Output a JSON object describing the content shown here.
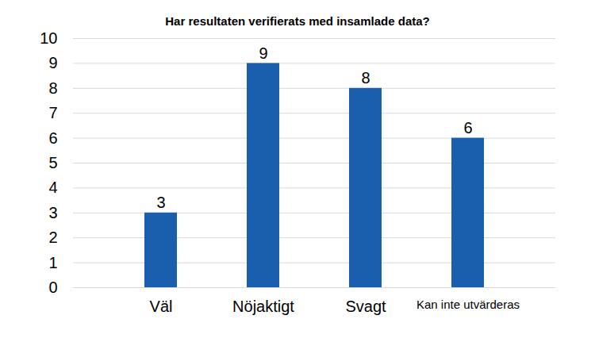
{
  "chart_data": {
    "type": "bar",
    "title": "Har resultaten verifierats med insamlade data?",
    "categories": [
      "Väl",
      "Nöjaktigt",
      "Svagt",
      "Kan inte utvärderas"
    ],
    "values": [
      3,
      9,
      8,
      6
    ],
    "color": "#1a5fad",
    "ylim": [
      0,
      10
    ],
    "yticks": [
      0,
      1,
      2,
      3,
      4,
      5,
      6,
      7,
      8,
      9,
      10
    ],
    "grid": true,
    "data_labels": true
  }
}
